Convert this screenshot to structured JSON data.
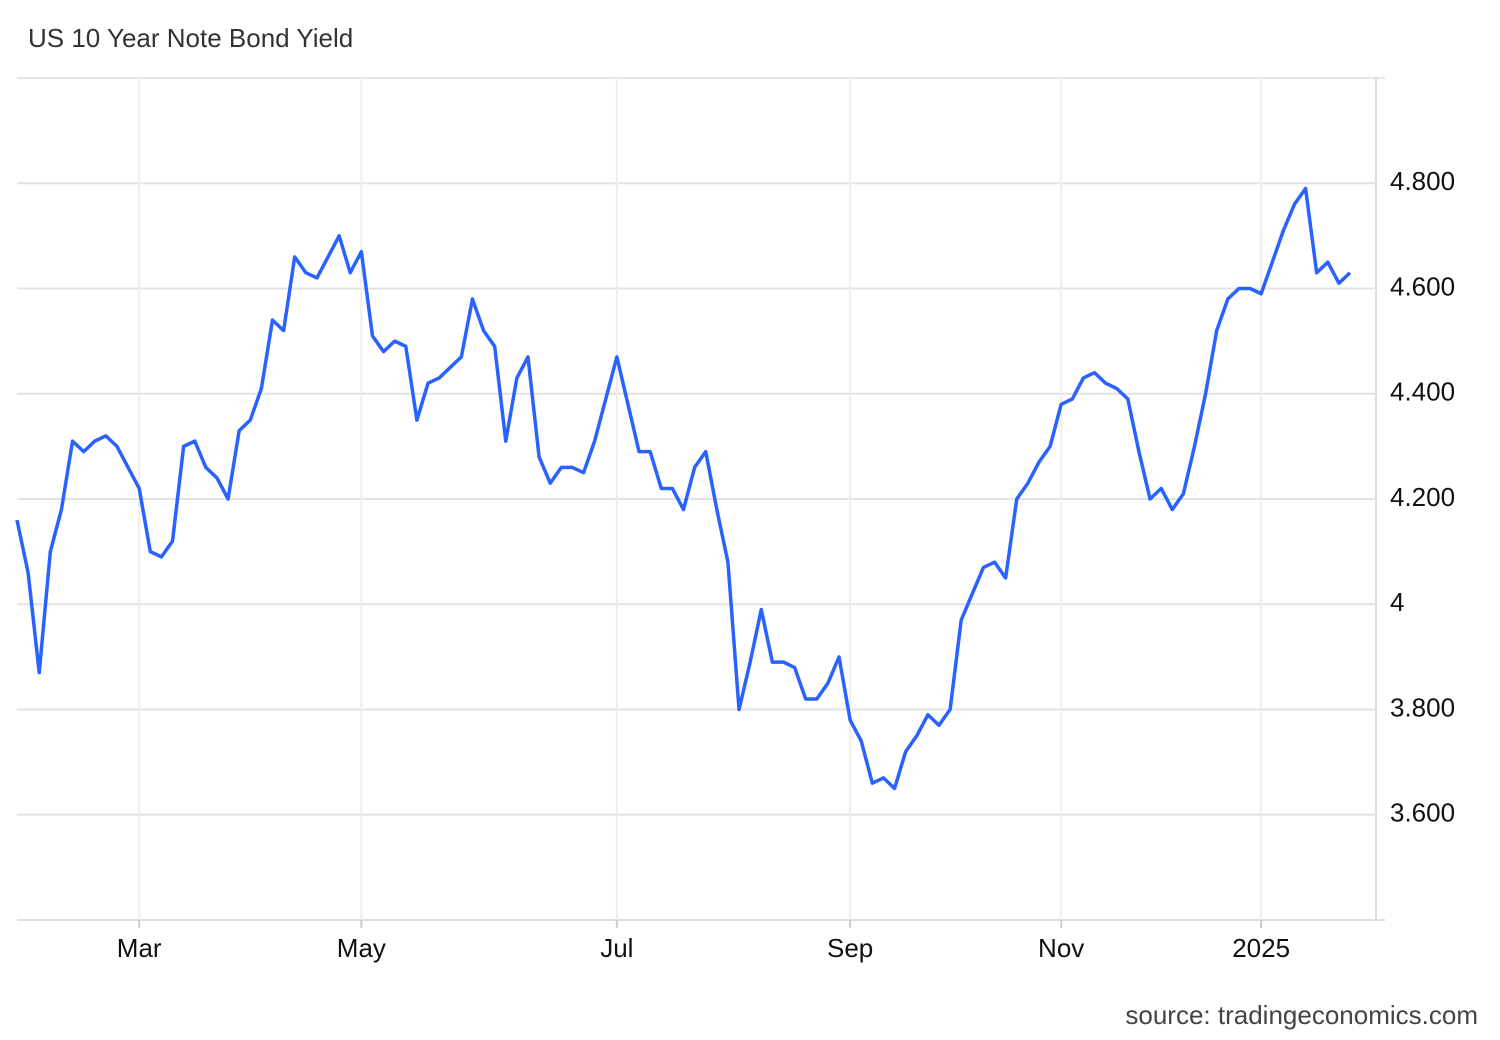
{
  "chart_data": {
    "type": "line",
    "title": "US 10 Year Note Bond Yield",
    "source": "source: tradingeconomics.com",
    "color": "#2962ff",
    "grid": true,
    "categories": [
      null,
      null,
      null,
      null,
      null,
      null,
      null,
      null,
      null,
      null,
      null,
      "Mar",
      null,
      null,
      null,
      null,
      null,
      null,
      null,
      null,
      null,
      null,
      null,
      null,
      null,
      null,
      null,
      null,
      null,
      null,
      null,
      "May",
      null,
      null,
      null,
      null,
      null,
      null,
      null,
      null,
      null,
      null,
      null,
      null,
      null,
      null,
      null,
      null,
      null,
      null,
      null,
      null,
      null,
      null,
      "Jul",
      null,
      null,
      null,
      null,
      null,
      null,
      null,
      null,
      null,
      null,
      null,
      null,
      null,
      null,
      null,
      null,
      null,
      null,
      null,
      null,
      "Sep",
      null,
      null,
      null,
      null,
      null,
      null,
      null,
      null,
      null,
      null,
      null,
      null,
      null,
      null,
      null,
      null,
      null,
      null,
      "Nov",
      null,
      null,
      null,
      null,
      null,
      null,
      null,
      null,
      null,
      null,
      null,
      null,
      null,
      null,
      null,
      null,
      null,
      "2025",
      null,
      null,
      null,
      null,
      null,
      null,
      null,
      null
    ],
    "values": [
      4.16,
      4.06,
      3.87,
      4.1,
      4.18,
      4.31,
      4.29,
      4.31,
      4.32,
      4.3,
      4.26,
      4.22,
      4.1,
      4.09,
      4.12,
      4.3,
      4.31,
      4.26,
      4.24,
      4.2,
      4.33,
      4.35,
      4.41,
      4.54,
      4.52,
      4.66,
      4.63,
      4.62,
      4.66,
      4.7,
      4.63,
      4.67,
      4.51,
      4.48,
      4.5,
      4.49,
      4.35,
      4.42,
      4.43,
      4.45,
      4.47,
      4.58,
      4.52,
      4.49,
      4.31,
      4.43,
      4.47,
      4.28,
      4.23,
      4.26,
      4.26,
      4.25,
      4.31,
      4.39,
      4.47,
      4.38,
      4.29,
      4.29,
      4.22,
      4.22,
      4.18,
      4.26,
      4.29,
      4.18,
      4.08,
      3.8,
      3.89,
      3.99,
      3.89,
      3.89,
      3.88,
      3.82,
      3.82,
      3.85,
      3.9,
      3.78,
      3.74,
      3.66,
      3.67,
      3.65,
      3.72,
      3.75,
      3.79,
      3.77,
      3.8,
      3.97,
      4.02,
      4.07,
      4.08,
      4.05,
      4.2,
      4.23,
      4.27,
      4.3,
      4.38,
      4.39,
      4.43,
      4.44,
      4.42,
      4.41,
      4.39,
      4.29,
      4.2,
      4.22,
      4.18,
      4.21,
      4.3,
      4.4,
      4.52,
      4.58,
      4.6,
      4.6,
      4.59,
      4.65,
      4.71,
      4.76,
      4.79,
      4.63,
      4.65,
      4.61,
      4.63
    ],
    "ylim": [
      3.4,
      5.0
    ],
    "yticks": [
      {
        "value": 3.6,
        "label": "3.600"
      },
      {
        "value": 3.8,
        "label": "3.800"
      },
      4,
      {
        "value": 4.2,
        "label": "4.200"
      },
      {
        "value": 4.4,
        "label": "4.400"
      },
      {
        "value": 4.6,
        "label": "4.600"
      },
      {
        "value": 4.8,
        "label": "4.800"
      }
    ]
  }
}
